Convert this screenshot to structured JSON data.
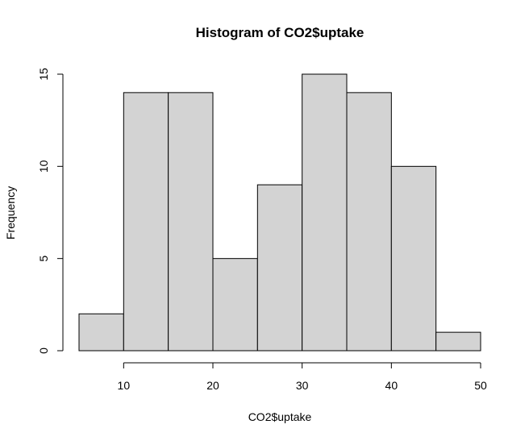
{
  "chart_data": {
    "type": "bar",
    "title": "Histogram of CO2$uptake",
    "xlabel": "CO2$uptake",
    "ylabel": "Frequency",
    "bins": [
      {
        "x0": 5,
        "x1": 10,
        "count": 2
      },
      {
        "x0": 10,
        "x1": 15,
        "count": 14
      },
      {
        "x0": 15,
        "x1": 20,
        "count": 14
      },
      {
        "x0": 20,
        "x1": 25,
        "count": 5
      },
      {
        "x0": 25,
        "x1": 30,
        "count": 9
      },
      {
        "x0": 30,
        "x1": 35,
        "count": 15
      },
      {
        "x0": 35,
        "x1": 40,
        "count": 14
      },
      {
        "x0": 40,
        "x1": 45,
        "count": 10
      },
      {
        "x0": 45,
        "x1": 50,
        "count": 1
      }
    ],
    "x_ticks": [
      10,
      20,
      30,
      40,
      50
    ],
    "y_ticks": [
      0,
      5,
      10,
      15
    ],
    "xlim": [
      5,
      50
    ],
    "ylim": [
      0,
      15
    ],
    "grid": false,
    "bar_color": "#d3d3d3"
  }
}
